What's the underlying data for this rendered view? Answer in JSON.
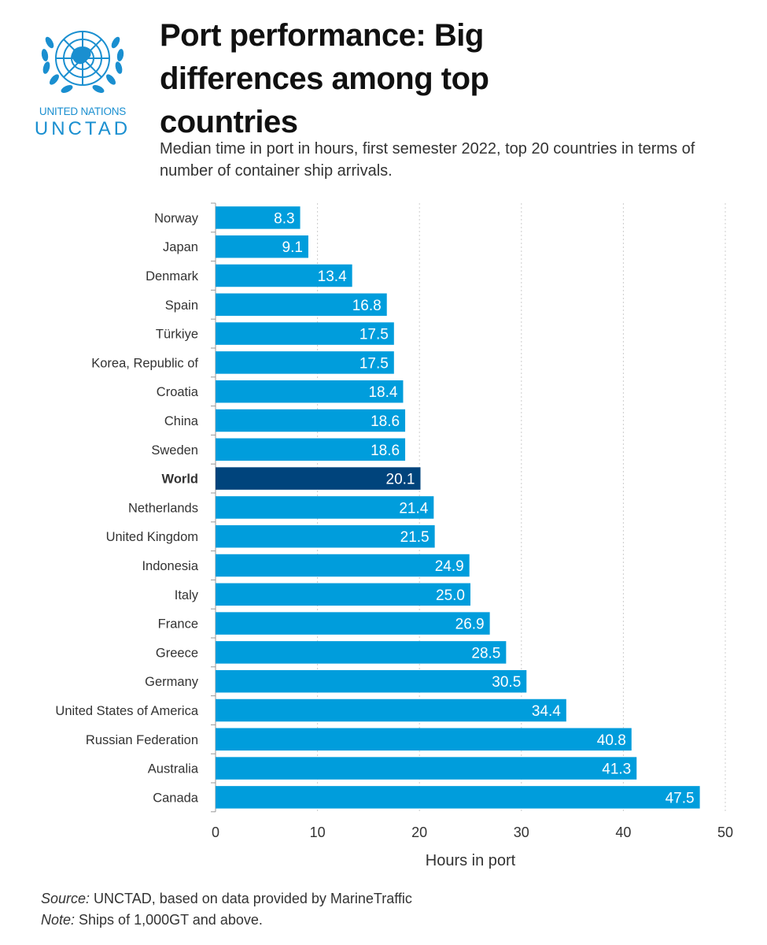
{
  "logo": {
    "line1": "UNITED NATIONS",
    "line2": "UNCTAD",
    "icon": "un-emblem-icon",
    "color": "#1a8fd0"
  },
  "header": {
    "title": "Port performance: Big differences among top countries",
    "subtitle": "Median time in port in hours, first semester 2022, top 20 countries in terms of number of container ship arrivals."
  },
  "footer": {
    "source_label": "Source:",
    "source_text": " UNCTAD, based on data provided by MarineTraffic",
    "note_label": "Note:",
    "note_text": " Ships of 1,000GT and above."
  },
  "chart_data": {
    "type": "bar",
    "orientation": "horizontal",
    "categories": [
      "Norway",
      "Japan",
      "Denmark",
      "Spain",
      "Türkiye",
      "Korea, Republic of",
      "Croatia",
      "China",
      "Sweden",
      "World",
      "Netherlands",
      "United Kingdom",
      "Indonesia",
      "Italy",
      "France",
      "Greece",
      "Germany",
      "United States of America",
      "Russian Federation",
      "Australia",
      "Canada"
    ],
    "values": [
      8.3,
      9.1,
      13.4,
      16.8,
      17.5,
      17.5,
      18.4,
      18.6,
      18.6,
      20.1,
      21.4,
      21.5,
      24.9,
      25.0,
      26.9,
      28.5,
      30.5,
      34.4,
      40.8,
      41.3,
      47.5
    ],
    "value_labels": [
      "8.3",
      "9.1",
      "13.4",
      "16.8",
      "17.5",
      "17.5",
      "18.4",
      "18.6",
      "18.6",
      "20.1",
      "21.4",
      "21.5",
      "24.9",
      "25.0",
      "26.9",
      "28.5",
      "30.5",
      "34.4",
      "40.8",
      "41.3",
      "47.5"
    ],
    "highlight": "World",
    "title": "",
    "xlabel": "Hours in port",
    "ylabel": "",
    "xlim": [
      0,
      50
    ],
    "xticks": [
      0,
      10,
      20,
      30,
      40,
      50
    ],
    "grid": true,
    "colors": {
      "bar": "#009ddc",
      "highlight": "#00447c",
      "grid": "#cccccc",
      "axis": "#999999"
    }
  }
}
